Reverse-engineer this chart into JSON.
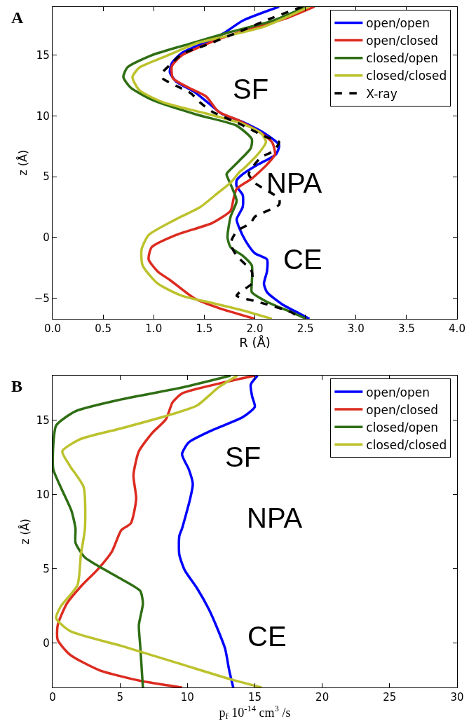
{
  "chart_data": [
    {
      "type": "line",
      "xlabel": "R (Å)",
      "ylabel": "z (Å)",
      "annotations": [
        "A",
        "SF",
        "NPA",
        "CE"
      ],
      "xlim": [
        0,
        4
      ],
      "xticks": [
        {
          "value": 0,
          "label": "0.0"
        },
        {
          "value": 0.5,
          "label": "0.5"
        },
        {
          "value": 1,
          "label": "1.0"
        },
        {
          "value": 1.5,
          "label": "1.5"
        },
        {
          "value": 2,
          "label": "2.0"
        },
        {
          "value": 2.5,
          "label": "2.5"
        },
        {
          "value": 3,
          "label": "3.0"
        },
        {
          "value": 3.5,
          "label": "3.5"
        },
        {
          "value": 4,
          "label": "4.0"
        }
      ],
      "ylim": [
        -6.7,
        19
      ],
      "yticks": [
        {
          "value": -5,
          "label": "−5"
        },
        0,
        5,
        10,
        15
      ],
      "legend": "top right",
      "marker": "none",
      "series": [
        {
          "name": "open/open",
          "color": "#0000ff",
          "x": [
            2.24,
            1.88,
            1.7,
            1.55,
            1.28,
            1.18,
            1.16,
            1.22,
            1.4,
            1.55,
            1.67,
            1.88,
            2.09,
            2.24,
            2.21,
            2.03,
            1.88,
            1.82,
            1.82,
            1.88,
            1.88,
            1.82,
            1.85,
            1.91,
            2.0,
            2.12,
            2.12,
            2.09,
            2.12,
            2.27,
            2.45,
            2.54
          ],
          "values": [
            19.0,
            17.85,
            16.85,
            16.2,
            15.2,
            14.35,
            13.6,
            12.85,
            12.0,
            11.0,
            10.2,
            9.5,
            8.6,
            7.6,
            6.85,
            6.0,
            5.2,
            4.7,
            4.2,
            3.5,
            2.5,
            1.5,
            0.7,
            -0.3,
            -1.3,
            -1.8,
            -2.8,
            -3.8,
            -4.5,
            -5.5,
            -6.3,
            -6.7
          ]
        },
        {
          "name": "open/closed",
          "color": "#dc2b20",
          "x": [
            2.59,
            2.33,
            1.97,
            1.7,
            1.46,
            1.28,
            1.18,
            1.19,
            1.34,
            1.52,
            1.64,
            1.85,
            2.06,
            2.17,
            2.2,
            2.12,
            1.97,
            1.82,
            1.79,
            1.76,
            1.58,
            1.22,
            0.98,
            0.95,
            1.04,
            1.16,
            1.4,
            1.64,
            2.0
          ],
          "values": [
            19.0,
            18.1,
            17.2,
            16.5,
            15.7,
            15.0,
            14.1,
            13.1,
            12.35,
            11.6,
            10.35,
            9.6,
            8.6,
            7.85,
            6.85,
            6.0,
            4.85,
            4.0,
            3.2,
            2.2,
            1.2,
            0.2,
            -0.8,
            -1.8,
            -2.8,
            -3.5,
            -5.0,
            -5.8,
            -6.7
          ]
        },
        {
          "name": "closed/open",
          "color": "#2f6e14",
          "x": [
            2.51,
            2.18,
            1.73,
            1.37,
            0.98,
            0.74,
            0.7,
            0.77,
            0.98,
            1.43,
            1.82,
            1.97,
            1.96,
            1.85,
            1.73,
            1.72,
            1.78,
            1.82,
            1.76,
            1.73,
            1.76,
            1.88,
            1.97,
            1.97,
            1.97,
            2.12,
            2.36,
            2.51
          ],
          "values": [
            19.0,
            17.85,
            16.85,
            15.98,
            15.0,
            14.0,
            13.2,
            12.35,
            11.35,
            10.1,
            9.2,
            8.1,
            7.35,
            6.35,
            5.35,
            5.2,
            4.0,
            3.0,
            1.7,
            0,
            -0.8,
            -1.5,
            -2.3,
            -3.8,
            -4.5,
            -5.3,
            -6.15,
            -6.7
          ]
        },
        {
          "name": "closed/closed",
          "color": "#bcc22c",
          "x": [
            2.54,
            2.09,
            1.73,
            1.43,
            1.1,
            0.86,
            0.79,
            0.86,
            1.1,
            1.52,
            1.88,
            2.06,
            2.11,
            2.03,
            1.88,
            1.85,
            1.76,
            1.64,
            1.46,
            1.22,
            0.95,
            0.88,
            0.89,
            1.04,
            1.28,
            1.58,
            1.88,
            2.17
          ],
          "values": [
            19.0,
            17.35,
            16.6,
            16.0,
            14.85,
            14.0,
            13.2,
            12.1,
            11.1,
            10.2,
            9.35,
            8.6,
            7.85,
            6.85,
            5.6,
            5.4,
            4.5,
            3.7,
            2.5,
            1.5,
            0.2,
            -1.0,
            -2.3,
            -3.8,
            -4.8,
            -5.4,
            -6.0,
            -6.7
          ]
        },
        {
          "name": "X-ray",
          "color": "#000000",
          "line_style": "dashed",
          "x": [
            2.47,
            2.18,
            1.82,
            1.52,
            1.28,
            1.16,
            1.09,
            1.09,
            1.22,
            1.37,
            1.46,
            1.58,
            1.85,
            2.09,
            2.24,
            2.18,
            2.06,
            1.97,
            1.94,
            2.0,
            2.24,
            2.24,
            2.0,
            1.96,
            1.82,
            1.76,
            1.82,
            1.97,
            1.97,
            1.85,
            1.82,
            2.03,
            2.36,
            2.45
          ],
          "values": [
            19.0,
            18.1,
            16.85,
            15.85,
            15.1,
            14.2,
            13.6,
            13.1,
            12.5,
            11.85,
            11.1,
            10.35,
            9.35,
            8.35,
            7.85,
            7.1,
            6.6,
            5.7,
            5.2,
            4.5,
            3.2,
            2.7,
            1.7,
            1.2,
            0.5,
            -0.5,
            -1.5,
            -2.8,
            -3.8,
            -4.5,
            -4.8,
            -5.3,
            -6.15,
            -6.7
          ]
        }
      ]
    },
    {
      "type": "line",
      "xlabel": "p$_{f}$ 10$^{-14}$ cm$^{3}$ /s",
      "ylabel": "z (Å)",
      "annotations": [
        "B",
        "SF",
        "NPA",
        "CE"
      ],
      "xlim": [
        0,
        30
      ],
      "xticks": [
        0,
        5,
        10,
        15,
        20,
        25,
        30
      ],
      "ylim": [
        -3,
        18
      ],
      "yticks": [
        0,
        5,
        10,
        15
      ],
      "legend": "top right",
      "marker": "none",
      "series": [
        {
          "name": "open/open",
          "color": "#0000ff",
          "x": [
            15.2,
            14.7,
            14.8,
            15.0,
            14.1,
            11.9,
            10.1,
            9.6,
            10.1,
            10.4,
            10.2,
            9.6,
            9.4,
            9.4,
            9.8,
            10.7,
            11.6,
            12.3,
            12.8,
            13.1,
            13.4
          ],
          "values": [
            18,
            17.4,
            16.6,
            15.9,
            15.2,
            14.35,
            13.5,
            12.7,
            11.7,
            10.7,
            9.7,
            7.7,
            7.2,
            5.95,
            4.9,
            3.7,
            2.25,
            0.8,
            -0.4,
            -1.85,
            -3.0
          ]
        },
        {
          "name": "open/closed",
          "color": "#dc2b20",
          "x": [
            15.0,
            12.5,
            9.6,
            8.9,
            8.4,
            7.4,
            6.4,
            6.0,
            6.2,
            5.8,
            5.1,
            4.4,
            3.3,
            2.2,
            1.06,
            0.38,
            0.38,
            1.3,
            3.5,
            6.5,
            9.6
          ],
          "values": [
            18,
            17.5,
            16.8,
            16.2,
            15.05,
            14.15,
            12.9,
            11.3,
            9.7,
            8.05,
            7.6,
            6.15,
            4.9,
            3.9,
            2.65,
            1.2,
            0.2,
            -0.8,
            -1.85,
            -2.55,
            -3.0
          ]
        },
        {
          "name": "closed/open",
          "color": "#2f6e14",
          "x": [
            13.2,
            9.6,
            5.1,
            1.7,
            0.27,
            0.05,
            0.05,
            0.6,
            1.4,
            1.7,
            1.7,
            2.4,
            4.7,
            6.5,
            6.7,
            6.4,
            6.5,
            6.7
          ],
          "values": [
            18,
            17.2,
            16.4,
            15.6,
            14.65,
            13.3,
            11.7,
            10.5,
            8.9,
            7.7,
            6.75,
            5.75,
            4.5,
            3.5,
            2.65,
            1.2,
            -0.2,
            -3.0
          ]
        },
        {
          "name": "closed/closed",
          "color": "#bcc22c",
          "x": [
            13.7,
            12.3,
            10.7,
            8.3,
            5.1,
            2.0,
            0.72,
            1.3,
            2.3,
            2.4,
            2.1,
            1.85,
            0.6,
            0.27,
            1.3,
            5.1,
            9.6,
            13.2,
            15.5
          ],
          "values": [
            18,
            17.2,
            15.98,
            15.25,
            14.45,
            13.7,
            12.9,
            11.9,
            10.5,
            7.7,
            5.95,
            3.9,
            2.45,
            1.65,
            0.8,
            -0.2,
            -1.45,
            -2.45,
            -3.0
          ]
        }
      ]
    }
  ]
}
